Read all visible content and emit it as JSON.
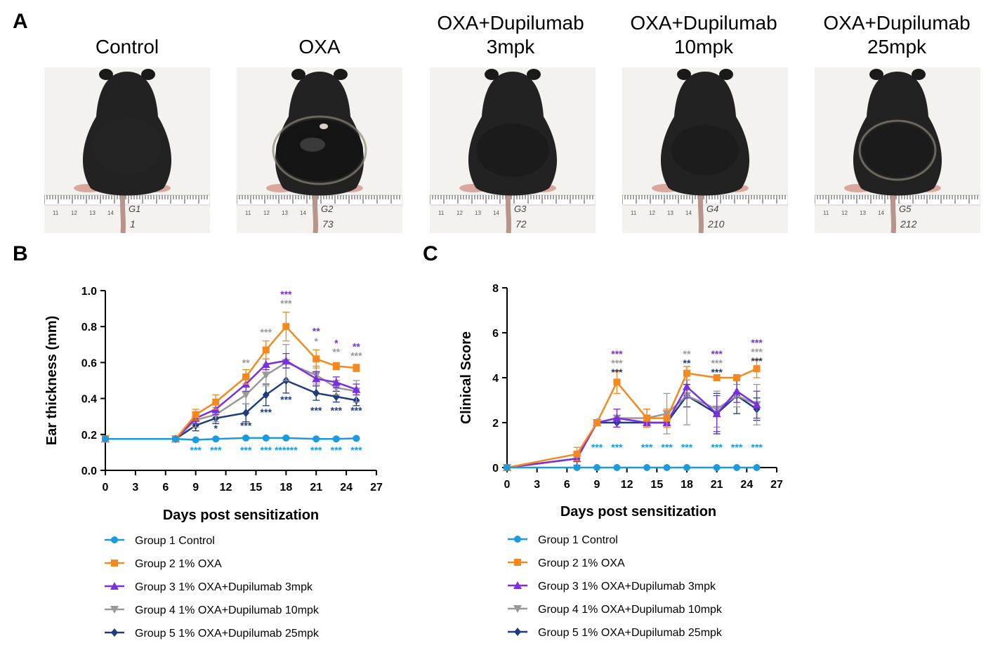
{
  "panels": {
    "a": "A",
    "b": "B",
    "c": "C"
  },
  "photos": [
    {
      "title_lines": [
        "Control"
      ],
      "tag": "G1",
      "id": "1"
    },
    {
      "title_lines": [
        "OXA"
      ],
      "tag": "G2",
      "id": "73"
    },
    {
      "title_lines": [
        "OXA+Dupilumab",
        "3mpk"
      ],
      "tag": "G3",
      "id": "72"
    },
    {
      "title_lines": [
        "OXA+Dupilumab",
        "10mpk"
      ],
      "tag": "G4",
      "id": "210"
    },
    {
      "title_lines": [
        "OXA+Dupilumab",
        "25mpk"
      ],
      "tag": "G5",
      "id": "212"
    }
  ],
  "ruler_labels": [
    "11",
    "12",
    "13",
    "14"
  ],
  "colors": {
    "g1": "#1a9be0",
    "g2": "#f5891f",
    "g3": "#7b2fe0",
    "g4": "#999999",
    "g5": "#1f3c80"
  },
  "chart_data": [
    {
      "type": "line",
      "panel": "B",
      "xlabel": "Days post sensitization",
      "ylabel": "Ear thickness (mm)",
      "xlim": [
        0,
        27
      ],
      "ylim": [
        0,
        1.0
      ],
      "xticks": [
        "0",
        "3",
        "6",
        "9",
        "12",
        "15",
        "18",
        "21",
        "24",
        "27"
      ],
      "yticks": [
        "0.0",
        "0.2",
        "0.4",
        "0.6",
        "0.8",
        "1.0"
      ],
      "x": [
        0,
        7,
        9,
        11,
        14,
        16,
        18,
        21,
        23,
        25
      ],
      "series": [
        {
          "name": "Group 1 Control",
          "key": "g1",
          "marker": "circle",
          "values": [
            0.175,
            0.175,
            0.17,
            0.175,
            0.18,
            0.18,
            0.18,
            0.175,
            0.175,
            0.178
          ],
          "errors": [
            0.005,
            0.005,
            0.005,
            0.005,
            0.005,
            0.005,
            0.005,
            0.005,
            0.005,
            0.005
          ]
        },
        {
          "name": "Group 2 1% OXA",
          "key": "g2",
          "marker": "square",
          "values": [
            0.175,
            0.175,
            0.31,
            0.38,
            0.52,
            0.67,
            0.8,
            0.62,
            0.58,
            0.57
          ],
          "errors": [
            0.005,
            0.01,
            0.03,
            0.04,
            0.04,
            0.05,
            0.08,
            0.05,
            0.02,
            0.02
          ]
        },
        {
          "name": "Group 3 1% OXA+Dupilumab 3mpk",
          "key": "g3",
          "marker": "triangle",
          "values": [
            0.175,
            0.175,
            0.29,
            0.34,
            0.48,
            0.59,
            0.61,
            0.51,
            0.49,
            0.45
          ],
          "errors": [
            0.005,
            0.01,
            0.03,
            0.03,
            0.04,
            0.03,
            0.04,
            0.04,
            0.03,
            0.03
          ]
        },
        {
          "name": "Group 4 1% OXA+Dupilumab 10mpk",
          "key": "g4",
          "marker": "triangle-down",
          "values": [
            0.175,
            0.175,
            0.28,
            0.31,
            0.42,
            0.53,
            0.6,
            0.53,
            0.46,
            0.44
          ],
          "errors": [
            0.005,
            0.01,
            0.04,
            0.04,
            0.05,
            0.06,
            0.1,
            0.05,
            0.04,
            0.06
          ]
        },
        {
          "name": "Group 5 1% OXA+Dupilumab 25mpk",
          "key": "g5",
          "marker": "diamond",
          "values": [
            0.175,
            0.175,
            0.25,
            0.29,
            0.32,
            0.42,
            0.5,
            0.43,
            0.41,
            0.39
          ],
          "errors": [
            0.005,
            0.01,
            0.03,
            0.03,
            0.05,
            0.06,
            0.07,
            0.04,
            0.03,
            0.03
          ]
        }
      ],
      "annotations": [
        {
          "x": 9,
          "text": "***",
          "key": "g1",
          "row": "bottom"
        },
        {
          "x": 11,
          "text": "***",
          "key": "g1",
          "row": "bottom"
        },
        {
          "x": 14,
          "text": "***",
          "key": "g1",
          "row": "bottom"
        },
        {
          "x": 16,
          "text": "***",
          "key": "g1",
          "row": "bottom"
        },
        {
          "x": 18,
          "text": "******",
          "key": "g1",
          "row": "bottom"
        },
        {
          "x": 21,
          "text": "***",
          "key": "g1",
          "row": "bottom"
        },
        {
          "x": 23,
          "text": "***",
          "key": "g1",
          "row": "bottom"
        },
        {
          "x": 25,
          "text": "***",
          "key": "g1",
          "row": "bottom"
        },
        {
          "x": 11,
          "y": 0.215,
          "text": "*",
          "key": "g5"
        },
        {
          "x": 14,
          "y": 0.23,
          "text": "***",
          "key": "g5"
        },
        {
          "x": 16,
          "y": 0.305,
          "text": "***",
          "key": "g5"
        },
        {
          "x": 18,
          "y": 0.375,
          "text": "***",
          "key": "g5"
        },
        {
          "x": 21,
          "y": 0.315,
          "text": "***",
          "key": "g5"
        },
        {
          "x": 23,
          "y": 0.315,
          "text": "***",
          "key": "g5"
        },
        {
          "x": 25,
          "y": 0.315,
          "text": "***",
          "key": "g5"
        },
        {
          "x": 14,
          "y": 0.58,
          "text": "**",
          "key": "g4"
        },
        {
          "x": 16,
          "y": 0.75,
          "text": "***",
          "key": "g4"
        },
        {
          "x": 18,
          "y": 0.91,
          "text": "***",
          "key": "g4"
        },
        {
          "x": 18,
          "y": 0.96,
          "text": "***",
          "key": "g3"
        },
        {
          "x": 21,
          "y": 0.7,
          "text": "*",
          "key": "g4"
        },
        {
          "x": 21,
          "y": 0.755,
          "text": "**",
          "key": "g3"
        },
        {
          "x": 23,
          "y": 0.64,
          "text": "**",
          "key": "g4"
        },
        {
          "x": 23,
          "y": 0.69,
          "text": "*",
          "key": "g3"
        },
        {
          "x": 25,
          "y": 0.62,
          "text": "***",
          "key": "g4"
        },
        {
          "x": 25,
          "y": 0.67,
          "text": "**",
          "key": "g3"
        }
      ]
    },
    {
      "type": "line",
      "panel": "C",
      "xlabel": "Days post sensitization",
      "ylabel": "Clinical Score",
      "xlim": [
        0,
        27
      ],
      "ylim": [
        0,
        8
      ],
      "xticks": [
        "0",
        "3",
        "6",
        "9",
        "12",
        "15",
        "18",
        "21",
        "24",
        "27"
      ],
      "yticks": [
        "0",
        "2",
        "4",
        "6",
        "8"
      ],
      "x": [
        0,
        7,
        9,
        11,
        14,
        16,
        18,
        21,
        23,
        25
      ],
      "series": [
        {
          "name": "Group 1 Control",
          "key": "g1",
          "marker": "circle",
          "values": [
            0,
            0,
            0,
            0,
            0,
            0,
            0,
            0,
            0,
            0
          ],
          "errors": [
            0,
            0,
            0,
            0,
            0,
            0,
            0,
            0,
            0,
            0
          ]
        },
        {
          "name": "Group 2 1% OXA",
          "key": "g2",
          "marker": "square",
          "values": [
            0,
            0.6,
            2.0,
            3.8,
            2.2,
            2.2,
            4.2,
            4.0,
            4.0,
            4.4
          ],
          "errors": [
            0,
            0.3,
            0,
            0.5,
            0.4,
            0.4,
            0.3,
            0,
            0,
            0.4
          ]
        },
        {
          "name": "Group 3 1% OXA+Dupilumab 3mpk",
          "key": "g3",
          "marker": "triangle",
          "values": [
            0,
            0.4,
            2.0,
            2.2,
            2.0,
            2.0,
            3.6,
            2.4,
            3.4,
            2.8
          ],
          "errors": [
            0,
            0.3,
            0,
            0.4,
            0.2,
            0.2,
            0.5,
            0.8,
            0.5,
            0.6
          ]
        },
        {
          "name": "Group 4 1% OXA+Dupilumab 10mpk",
          "key": "g4",
          "marker": "triangle-down",
          "values": [
            0,
            0.4,
            2.0,
            2.2,
            2.2,
            2.4,
            3.2,
            2.6,
            3.2,
            2.8
          ],
          "errors": [
            0,
            0.3,
            0,
            0.4,
            0.4,
            0.9,
            1.3,
            0.8,
            0.5,
            0.9
          ]
        },
        {
          "name": "Group 5 1% OXA+Dupilumab 25mpk",
          "key": "g5",
          "marker": "diamond",
          "values": [
            0,
            0.4,
            2.0,
            2.0,
            2.0,
            2.0,
            3.2,
            2.4,
            3.2,
            2.6
          ],
          "errors": [
            0,
            0.3,
            0,
            0.2,
            0.2,
            0.2,
            0.5,
            0.9,
            0.8,
            0.5
          ]
        }
      ],
      "annotations": [
        {
          "x": 9,
          "text": "***",
          "key": "g1",
          "row": "bottom"
        },
        {
          "x": 11,
          "text": "***",
          "key": "g1",
          "row": "bottom"
        },
        {
          "x": 14,
          "text": "***",
          "key": "g1",
          "row": "bottom"
        },
        {
          "x": 16,
          "text": "***",
          "key": "g1",
          "row": "bottom"
        },
        {
          "x": 18,
          "text": "***",
          "key": "g1",
          "row": "bottom"
        },
        {
          "x": 21,
          "text": "***",
          "key": "g1",
          "row": "bottom"
        },
        {
          "x": 23,
          "text": "***",
          "key": "g1",
          "row": "bottom"
        },
        {
          "x": 25,
          "text": "***",
          "key": "g1",
          "row": "bottom"
        },
        {
          "x": 11,
          "y": 4.9,
          "text": "***",
          "key": "g3"
        },
        {
          "x": 11,
          "y": 4.5,
          "text": "***",
          "key": "g4"
        },
        {
          "x": 11,
          "y": 4.1,
          "text": "***",
          "key": "g5"
        },
        {
          "x": 18,
          "y": 4.9,
          "text": "**",
          "key": "g4"
        },
        {
          "x": 18,
          "y": 4.5,
          "text": "**",
          "key": "g5"
        },
        {
          "x": 21,
          "y": 4.9,
          "text": "***",
          "key": "g3"
        },
        {
          "x": 21,
          "y": 4.5,
          "text": "***",
          "key": "g4"
        },
        {
          "x": 21,
          "y": 4.1,
          "text": "***",
          "key": "g5"
        },
        {
          "x": 25,
          "y": 5.4,
          "text": "***",
          "key": "g3"
        },
        {
          "x": 25,
          "y": 5.0,
          "text": "***",
          "key": "g4"
        },
        {
          "x": 25,
          "y": 4.6,
          "text": "***",
          "key": "g5"
        }
      ]
    }
  ]
}
